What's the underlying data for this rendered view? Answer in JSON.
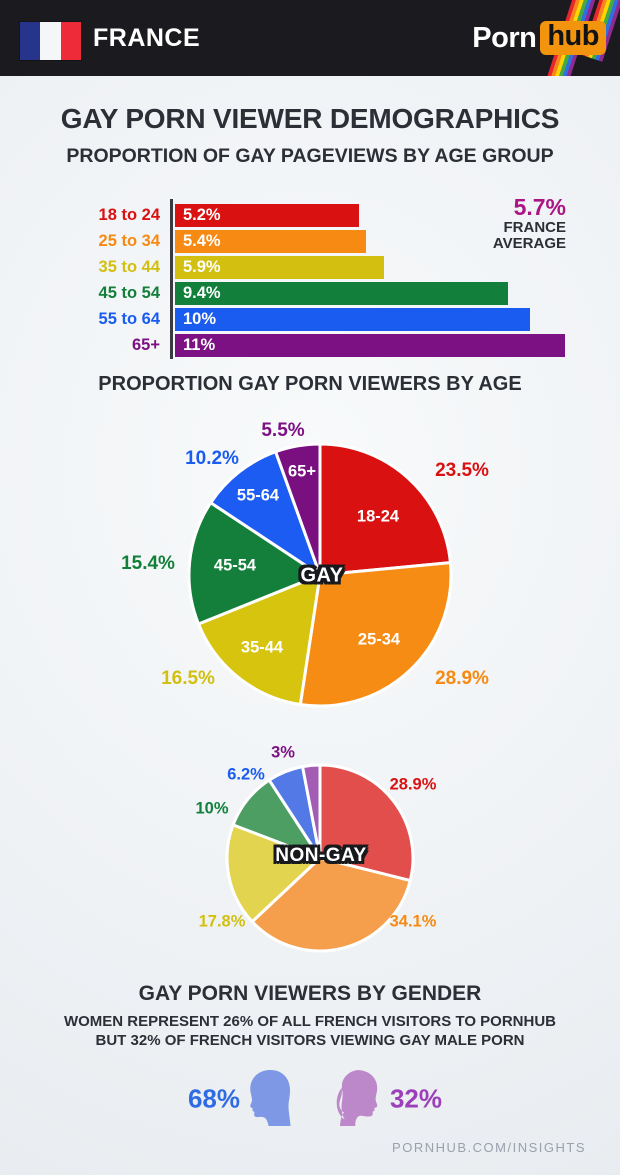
{
  "header": {
    "country": "FRANCE",
    "logo_porn": "Porn",
    "logo_hub": "hub"
  },
  "title": "GAY PORN VIEWER DEMOGRAPHICS",
  "subtitle": "PROPORTION OF GAY PAGEVIEWS BY AGE GROUP",
  "sections": {
    "age_pie_title": "PROPORTION GAY PORN VIEWERS BY AGE"
  },
  "france_average": {
    "value": "5.7%",
    "line1": "FRANCE",
    "line2": "AVERAGE"
  },
  "palette": {
    "red": "#da1111",
    "orange": "#f68a12",
    "yellow": "#d2bf10",
    "green": "#12803a",
    "blue": "#1a5cf0",
    "purple": "#7c1184",
    "magenta_average": "#ab1583",
    "dark_text": "#2c2f36",
    "header_bg": "#1b1b1f",
    "hub_orange": "#f3940f",
    "male_blue": "#7e98e6",
    "female_mauve": "#bd88ca"
  },
  "chart_data": [
    {
      "id": "gay-pageviews-by-age",
      "type": "bar",
      "orientation": "horizontal",
      "title": "PROPORTION OF GAY PAGEVIEWS BY AGE GROUP",
      "categories": [
        "18 to 24",
        "25 to 34",
        "35 to 44",
        "45 to 54",
        "55 to 64",
        "65+"
      ],
      "values": [
        5.2,
        5.4,
        5.9,
        9.4,
        10,
        11
      ],
      "value_labels": [
        "5.2%",
        "5.4%",
        "5.9%",
        "9.4%",
        "10%",
        "11%"
      ],
      "bar_colors": [
        "#da1111",
        "#f68a12",
        "#d2bf10",
        "#12803a",
        "#1a5cf0",
        "#7c1184"
      ],
      "xlim": [
        0,
        11
      ],
      "annotation": {
        "value": "5.7%",
        "label": "FRANCE AVERAGE"
      },
      "grid": false,
      "legend": "none"
    },
    {
      "id": "gay-viewers-by-age",
      "type": "pie",
      "center_label": "GAY",
      "start_angle_deg": 0,
      "clockwise": true,
      "slices": [
        {
          "label": "18-24",
          "pct": 23.5,
          "pct_label": "23.5%",
          "color": "#da1111",
          "label_color": "#da1111"
        },
        {
          "label": "25-34",
          "pct": 28.9,
          "pct_label": "28.9%",
          "color": "#f78c15",
          "label_color": "#f68a12"
        },
        {
          "label": "35-44",
          "pct": 16.5,
          "pct_label": "16.5%",
          "color": "#d6c40f",
          "label_color": "#d2bf10"
        },
        {
          "label": "45-54",
          "pct": 15.4,
          "pct_label": "15.4%",
          "color": "#147f3b",
          "label_color": "#12803a"
        },
        {
          "label": "55-64",
          "pct": 10.2,
          "pct_label": "10.2%",
          "color": "#1c5cf2",
          "label_color": "#1a5cf0"
        },
        {
          "label": "65+",
          "pct": 5.5,
          "pct_label": "5.5%",
          "color": "#7a0f80",
          "label_color": "#7c1184"
        }
      ]
    },
    {
      "id": "nongay-viewers-by-age",
      "type": "pie",
      "center_label": "NON-GAY",
      "start_angle_deg": 0,
      "clockwise": true,
      "slices": [
        {
          "label": "",
          "pct": 28.9,
          "pct_label": "28.9%",
          "color": "#e14e4b",
          "label_color": "#da1111"
        },
        {
          "label": "",
          "pct": 34.1,
          "pct_label": "34.1%",
          "color": "#f59f4c",
          "label_color": "#f68a12"
        },
        {
          "label": "",
          "pct": 17.8,
          "pct_label": "17.8%",
          "color": "#e3d44f",
          "label_color": "#d2bf10"
        },
        {
          "label": "",
          "pct": 10,
          "pct_label": "10%",
          "color": "#4d9e62",
          "label_color": "#12803a"
        },
        {
          "label": "",
          "pct": 6.2,
          "pct_label": "6.2%",
          "color": "#5379e6",
          "label_color": "#1a5cf0"
        },
        {
          "label": "",
          "pct": 3,
          "pct_label": "3%",
          "color": "#a35cb3",
          "label_color": "#7c1184"
        }
      ]
    }
  ],
  "gender": {
    "heading": "GAY PORN VIEWERS BY GENDER",
    "line1": {
      "pre": "WOMEN REPRESENT ",
      "bold": "26%",
      "post": " OF ALL FRENCH VISITORS TO PORNHUB"
    },
    "line2": {
      "pre": "BUT ",
      "bold": "32%",
      "post": " OF FRENCH VISITORS VIEWING GAY MALE PORN"
    },
    "male_pct": "68%",
    "female_pct": "32%"
  },
  "footer": {
    "text": "PORNHUB.COM/INSIGHTS"
  }
}
